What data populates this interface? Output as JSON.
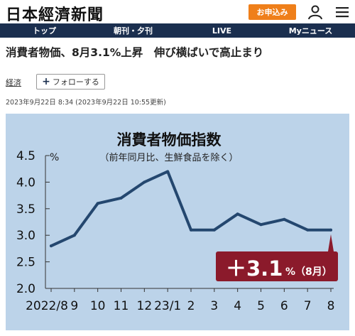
{
  "header": {
    "logo_text": "日本經濟新聞",
    "apply_label": "お申込み",
    "user_icon": "user-icon",
    "menu_icon": "hamburger-menu-icon"
  },
  "nav": {
    "items": [
      {
        "label": "トップ"
      },
      {
        "label": "朝刊・夕刊"
      },
      {
        "label": "LIVE"
      },
      {
        "label": "Myニュース"
      }
    ]
  },
  "article": {
    "headline": "消費者物価、8月3.1%上昇　伸び横ばいで高止まり",
    "category": "経済",
    "follow_label": "フォローする",
    "timestamp": "2023年9月22日 8:34 (2023年9月22日 10:55更新)"
  },
  "colors": {
    "nav_bg": "#1b2f4f",
    "apply_btn": "#ef7f1a",
    "chart_bg": "#bcd3e9",
    "line": "#24476f",
    "badge": "#8b1a2b"
  },
  "chart_data": {
    "type": "line",
    "title": "消費者物価指数",
    "subtitle": "（前年同月比、生鮮食品を除く）",
    "ylabel": "%",
    "ylim": [
      2.0,
      4.5
    ],
    "yticks": [
      "2.0",
      "2.5",
      "3.0",
      "3.5",
      "4.0",
      "4.5"
    ],
    "categories": [
      "2022/8",
      "9",
      "10",
      "11",
      "12",
      "23/1",
      "2",
      "3",
      "4",
      "5",
      "6",
      "7",
      "8"
    ],
    "values": [
      2.8,
      3.0,
      3.6,
      3.7,
      4.0,
      4.2,
      3.1,
      3.1,
      3.4,
      3.2,
      3.3,
      3.1,
      3.1
    ],
    "grid": false,
    "annotation": {
      "main": "＋3.1",
      "unit": "%（8月）"
    }
  }
}
